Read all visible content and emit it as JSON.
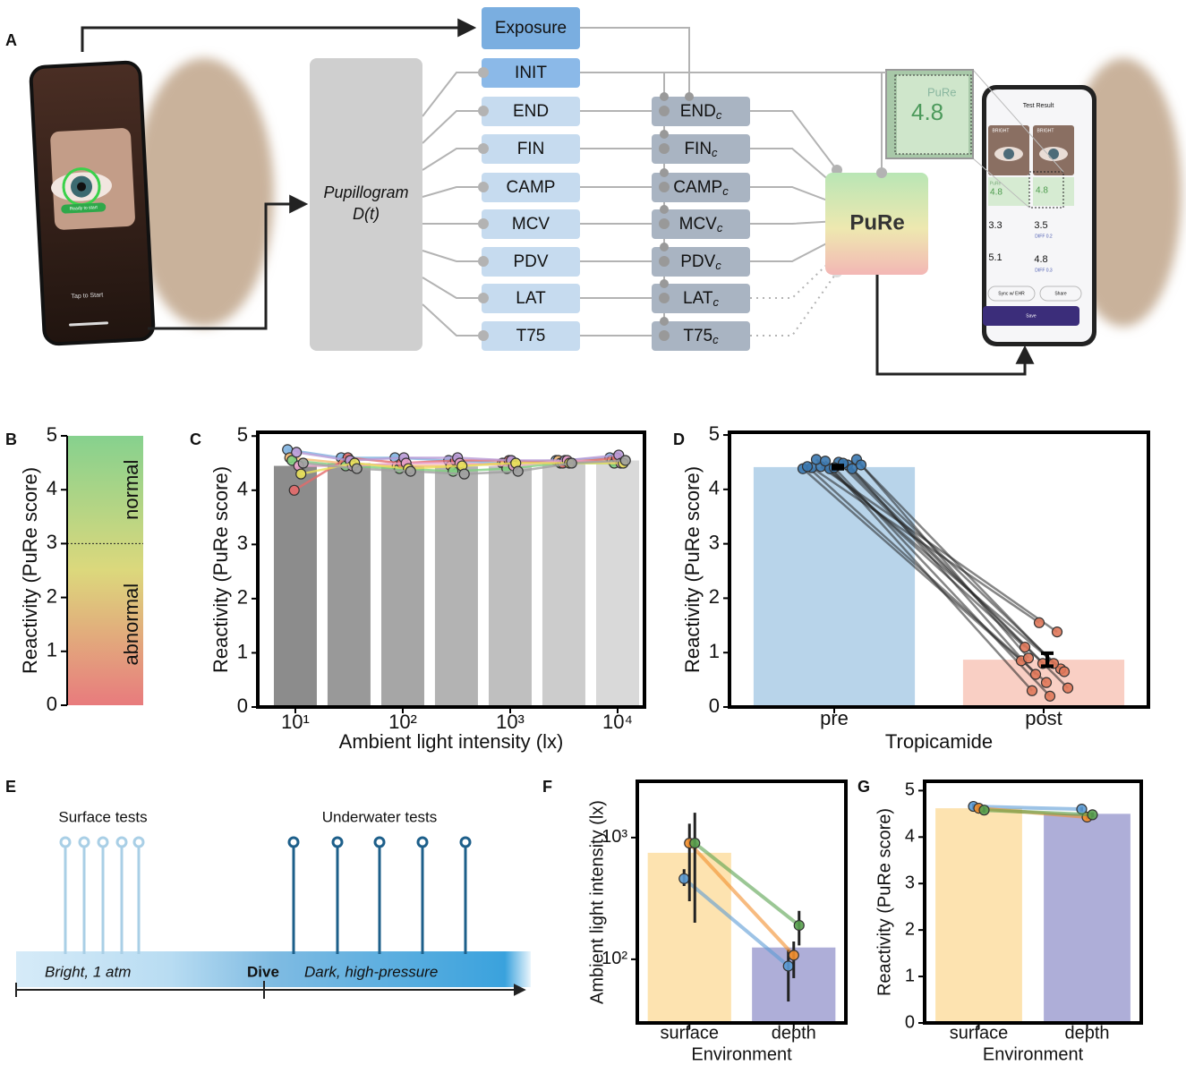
{
  "diagram": {
    "panel": "A",
    "exposure": "Exposure",
    "init": "INIT",
    "features": [
      "END",
      "FIN",
      "CAMP",
      "MCV",
      "PDV",
      "LAT",
      "T75"
    ],
    "subscript": "c",
    "pupillogram": [
      "Pupillogram",
      "D(t)"
    ],
    "output": "PuRe",
    "left_phone": {
      "status": "Ready to start",
      "action": "Tap to Start"
    },
    "right_phone": {
      "title": "Test Result",
      "eye_labels": [
        "BRIGHT",
        "BRIGHT"
      ],
      "score_label": "PuRe",
      "scores": [
        "4.8",
        "4.8"
      ],
      "metrics": [
        "3.3",
        "3.5",
        "5.1",
        "4.8"
      ],
      "diffs": [
        "DIFF 0.2",
        "DIFF 0.3"
      ],
      "sync": "Sync w/ EHR",
      "share": "Share",
      "save": "Save"
    },
    "inset": {
      "label": "PuRe",
      "score": "4.8"
    }
  },
  "timeline": {
    "panel": "E",
    "surface": "Surface tests",
    "underwater": "Underwater tests",
    "phase1": "Bright, 1 atm",
    "dive": "Dive",
    "phase2": "Dark, high-pressure"
  },
  "chart_data": [
    {
      "panel": "B",
      "type": "gradient",
      "ylabel": "Reactivity (PuRe score)",
      "ylim": [
        0,
        5
      ],
      "yticks": [
        0,
        1,
        2,
        3,
        4,
        5
      ],
      "threshold": 3,
      "colors": [
        "#e87b7d",
        "#dcd87c",
        "#86d18e"
      ],
      "annotations": {
        "above": "normal",
        "below": "abnormal"
      }
    },
    {
      "panel": "C",
      "type": "bar",
      "xscale": "log",
      "xlabel": "Ambient light intensity (lx)",
      "ylabel": "Reactivity (PuRe score)",
      "x": [
        10,
        31.6,
        100,
        316,
        1000,
        3160,
        10000
      ],
      "values": [
        4.45,
        4.5,
        4.44,
        4.44,
        4.44,
        4.5,
        4.55
      ],
      "colors": [
        "#8c8c8c",
        "#999999",
        "#a6a6a6",
        "#b3b3b3",
        "#bfbfbf",
        "#cccccc",
        "#d9d9d9"
      ],
      "xlim": [
        4.47,
        17783
      ],
      "xticks": [
        {
          "value": 10,
          "label": "10¹"
        },
        {
          "value": 100,
          "label": "10²"
        },
        {
          "value": 1000,
          "label": "10³"
        },
        {
          "value": 10000,
          "label": "10⁴"
        }
      ],
      "ylim": [
        0,
        5.07
      ],
      "yticks": [
        0,
        1,
        2,
        3,
        4,
        5
      ],
      "series": [
        {
          "color": "#7fb3e0",
          "values": [
            4.75,
            4.6,
            4.6,
            4.55,
            4.5,
            4.55,
            4.6
          ]
        },
        {
          "color": "#f5b971",
          "values": [
            4.6,
            4.5,
            4.45,
            4.45,
            4.5,
            4.55,
            4.55
          ]
        },
        {
          "color": "#7fcf7f",
          "values": [
            4.55,
            4.45,
            4.4,
            4.35,
            4.4,
            4.5,
            4.5
          ]
        },
        {
          "color": "#e36a6a",
          "values": [
            4.0,
            4.6,
            4.5,
            4.55,
            4.55,
            4.5,
            4.6
          ]
        },
        {
          "color": "#b89ad6",
          "values": [
            4.7,
            4.55,
            4.6,
            4.6,
            4.55,
            4.55,
            4.65
          ]
        },
        {
          "color": "#e9a0c9",
          "values": [
            4.45,
            4.45,
            4.5,
            4.5,
            4.45,
            4.55,
            4.5
          ]
        },
        {
          "color": "#e8e05a",
          "values": [
            4.3,
            4.5,
            4.4,
            4.45,
            4.5,
            4.5,
            4.5
          ]
        },
        {
          "color": "#a0a0a0",
          "values": [
            4.5,
            4.4,
            4.35,
            4.3,
            4.35,
            4.5,
            4.55
          ]
        }
      ]
    },
    {
      "panel": "D",
      "type": "paired_bar",
      "categories": [
        "pre",
        "post"
      ],
      "values": [
        4.41,
        0.87
      ],
      "errors": [
        0.03,
        0.12
      ],
      "colors": [
        "#b8d4ea",
        "#f9cfc4"
      ],
      "point_colors": [
        "#3a78b0",
        "#e0785a"
      ],
      "xlabel": "Tropicamide",
      "ylabel": "Reactivity (PuRe score)",
      "ylim": [
        0,
        5.05
      ],
      "yticks": [
        0,
        1,
        2,
        3,
        4,
        5
      ],
      "pre": [
        4.38,
        4.4,
        4.42,
        4.38,
        4.5,
        4.45,
        4.55,
        4.42,
        4.55,
        4.52,
        4.4,
        4.48,
        4.38,
        4.45
      ],
      "post": [
        0.85,
        1.55,
        1.38,
        1.1,
        0.8,
        0.7,
        0.9,
        0.45,
        0.65,
        0.3,
        0.2,
        0.35,
        0.6,
        0.8
      ]
    },
    {
      "panel": "F",
      "type": "bar",
      "yscale": "log",
      "categories": [
        "surface",
        "depth"
      ],
      "values": [
        750,
        125
      ],
      "colors": [
        "#fde3b0",
        "#aeaed8"
      ],
      "xlabel": "Environment",
      "ylabel": "Ambient light intensity (lx)",
      "ylim": [
        30,
        2900
      ],
      "yticks": [
        {
          "value": 100,
          "label": "10²"
        },
        {
          "value": 1000,
          "label": "10³"
        }
      ],
      "series": [
        {
          "color": "#5b9bd5",
          "values": [
            460,
            88
          ],
          "low": [
            400,
            45
          ],
          "high": [
            550,
            120
          ]
        },
        {
          "color": "#f28e2b",
          "values": [
            900,
            108
          ],
          "low": [
            300,
            70
          ],
          "high": [
            1300,
            140
          ]
        },
        {
          "color": "#59a14f",
          "values": [
            900,
            190
          ],
          "low": [
            200,
            130
          ],
          "high": [
            1600,
            250
          ]
        }
      ]
    },
    {
      "panel": "G",
      "type": "bar",
      "categories": [
        "surface",
        "depth"
      ],
      "values": [
        4.62,
        4.5
      ],
      "colors": [
        "#fde3b0",
        "#aeaed8"
      ],
      "xlabel": "Environment",
      "ylabel": "Reactivity (PuRe score)",
      "ylim": [
        0,
        5.2
      ],
      "yticks": [
        0,
        1,
        2,
        3,
        4,
        5
      ],
      "series": [
        {
          "color": "#5b9bd5",
          "values": [
            4.66,
            4.6
          ],
          "errors": [
            0.06,
            0.05
          ]
        },
        {
          "color": "#f28e2b",
          "values": [
            4.62,
            4.43
          ],
          "errors": [
            0.06,
            0.05
          ]
        },
        {
          "color": "#59a14f",
          "values": [
            4.58,
            4.48
          ],
          "errors": [
            0.06,
            0.05
          ]
        }
      ]
    }
  ]
}
